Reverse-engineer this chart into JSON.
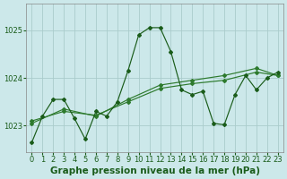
{
  "bg_color": "#cce8ea",
  "grid_color": "#aacccc",
  "line_color_dark": "#1a5c1a",
  "line_color_mid": "#2d7a2d",
  "xlabel": "Graphe pression niveau de la mer (hPa)",
  "xlim": [
    -0.5,
    23.5
  ],
  "ylim": [
    1022.45,
    1025.55
  ],
  "yticks": [
    1023,
    1024,
    1025
  ],
  "xticks": [
    0,
    1,
    2,
    3,
    4,
    5,
    6,
    7,
    8,
    9,
    10,
    11,
    12,
    13,
    14,
    15,
    16,
    17,
    18,
    19,
    20,
    21,
    22,
    23
  ],
  "series1_x": [
    0,
    1,
    2,
    3,
    4,
    5,
    6,
    7,
    8,
    9,
    10,
    11,
    12,
    13,
    14,
    15,
    16,
    17,
    18,
    19,
    20,
    21,
    22,
    23
  ],
  "series1_y": [
    1022.65,
    1023.2,
    1023.55,
    1023.55,
    1023.15,
    1022.72,
    1023.3,
    1023.2,
    1023.5,
    1024.15,
    1024.9,
    1025.05,
    1025.05,
    1024.55,
    1023.75,
    1023.65,
    1023.72,
    1023.05,
    1023.02,
    1023.65,
    1024.05,
    1023.75,
    1024.0,
    1024.12
  ],
  "series2_x": [
    0,
    3,
    6,
    9,
    12,
    15,
    18,
    21,
    23
  ],
  "series2_y": [
    1023.05,
    1023.35,
    1023.2,
    1023.55,
    1023.85,
    1023.95,
    1024.05,
    1024.2,
    1024.05
  ],
  "series3_x": [
    0,
    3,
    6,
    9,
    12,
    15,
    18,
    21,
    23
  ],
  "series3_y": [
    1023.1,
    1023.3,
    1023.22,
    1023.5,
    1023.78,
    1023.88,
    1023.95,
    1024.12,
    1024.05
  ],
  "tick_fontsize": 6.0,
  "xlabel_fontsize": 7.5
}
